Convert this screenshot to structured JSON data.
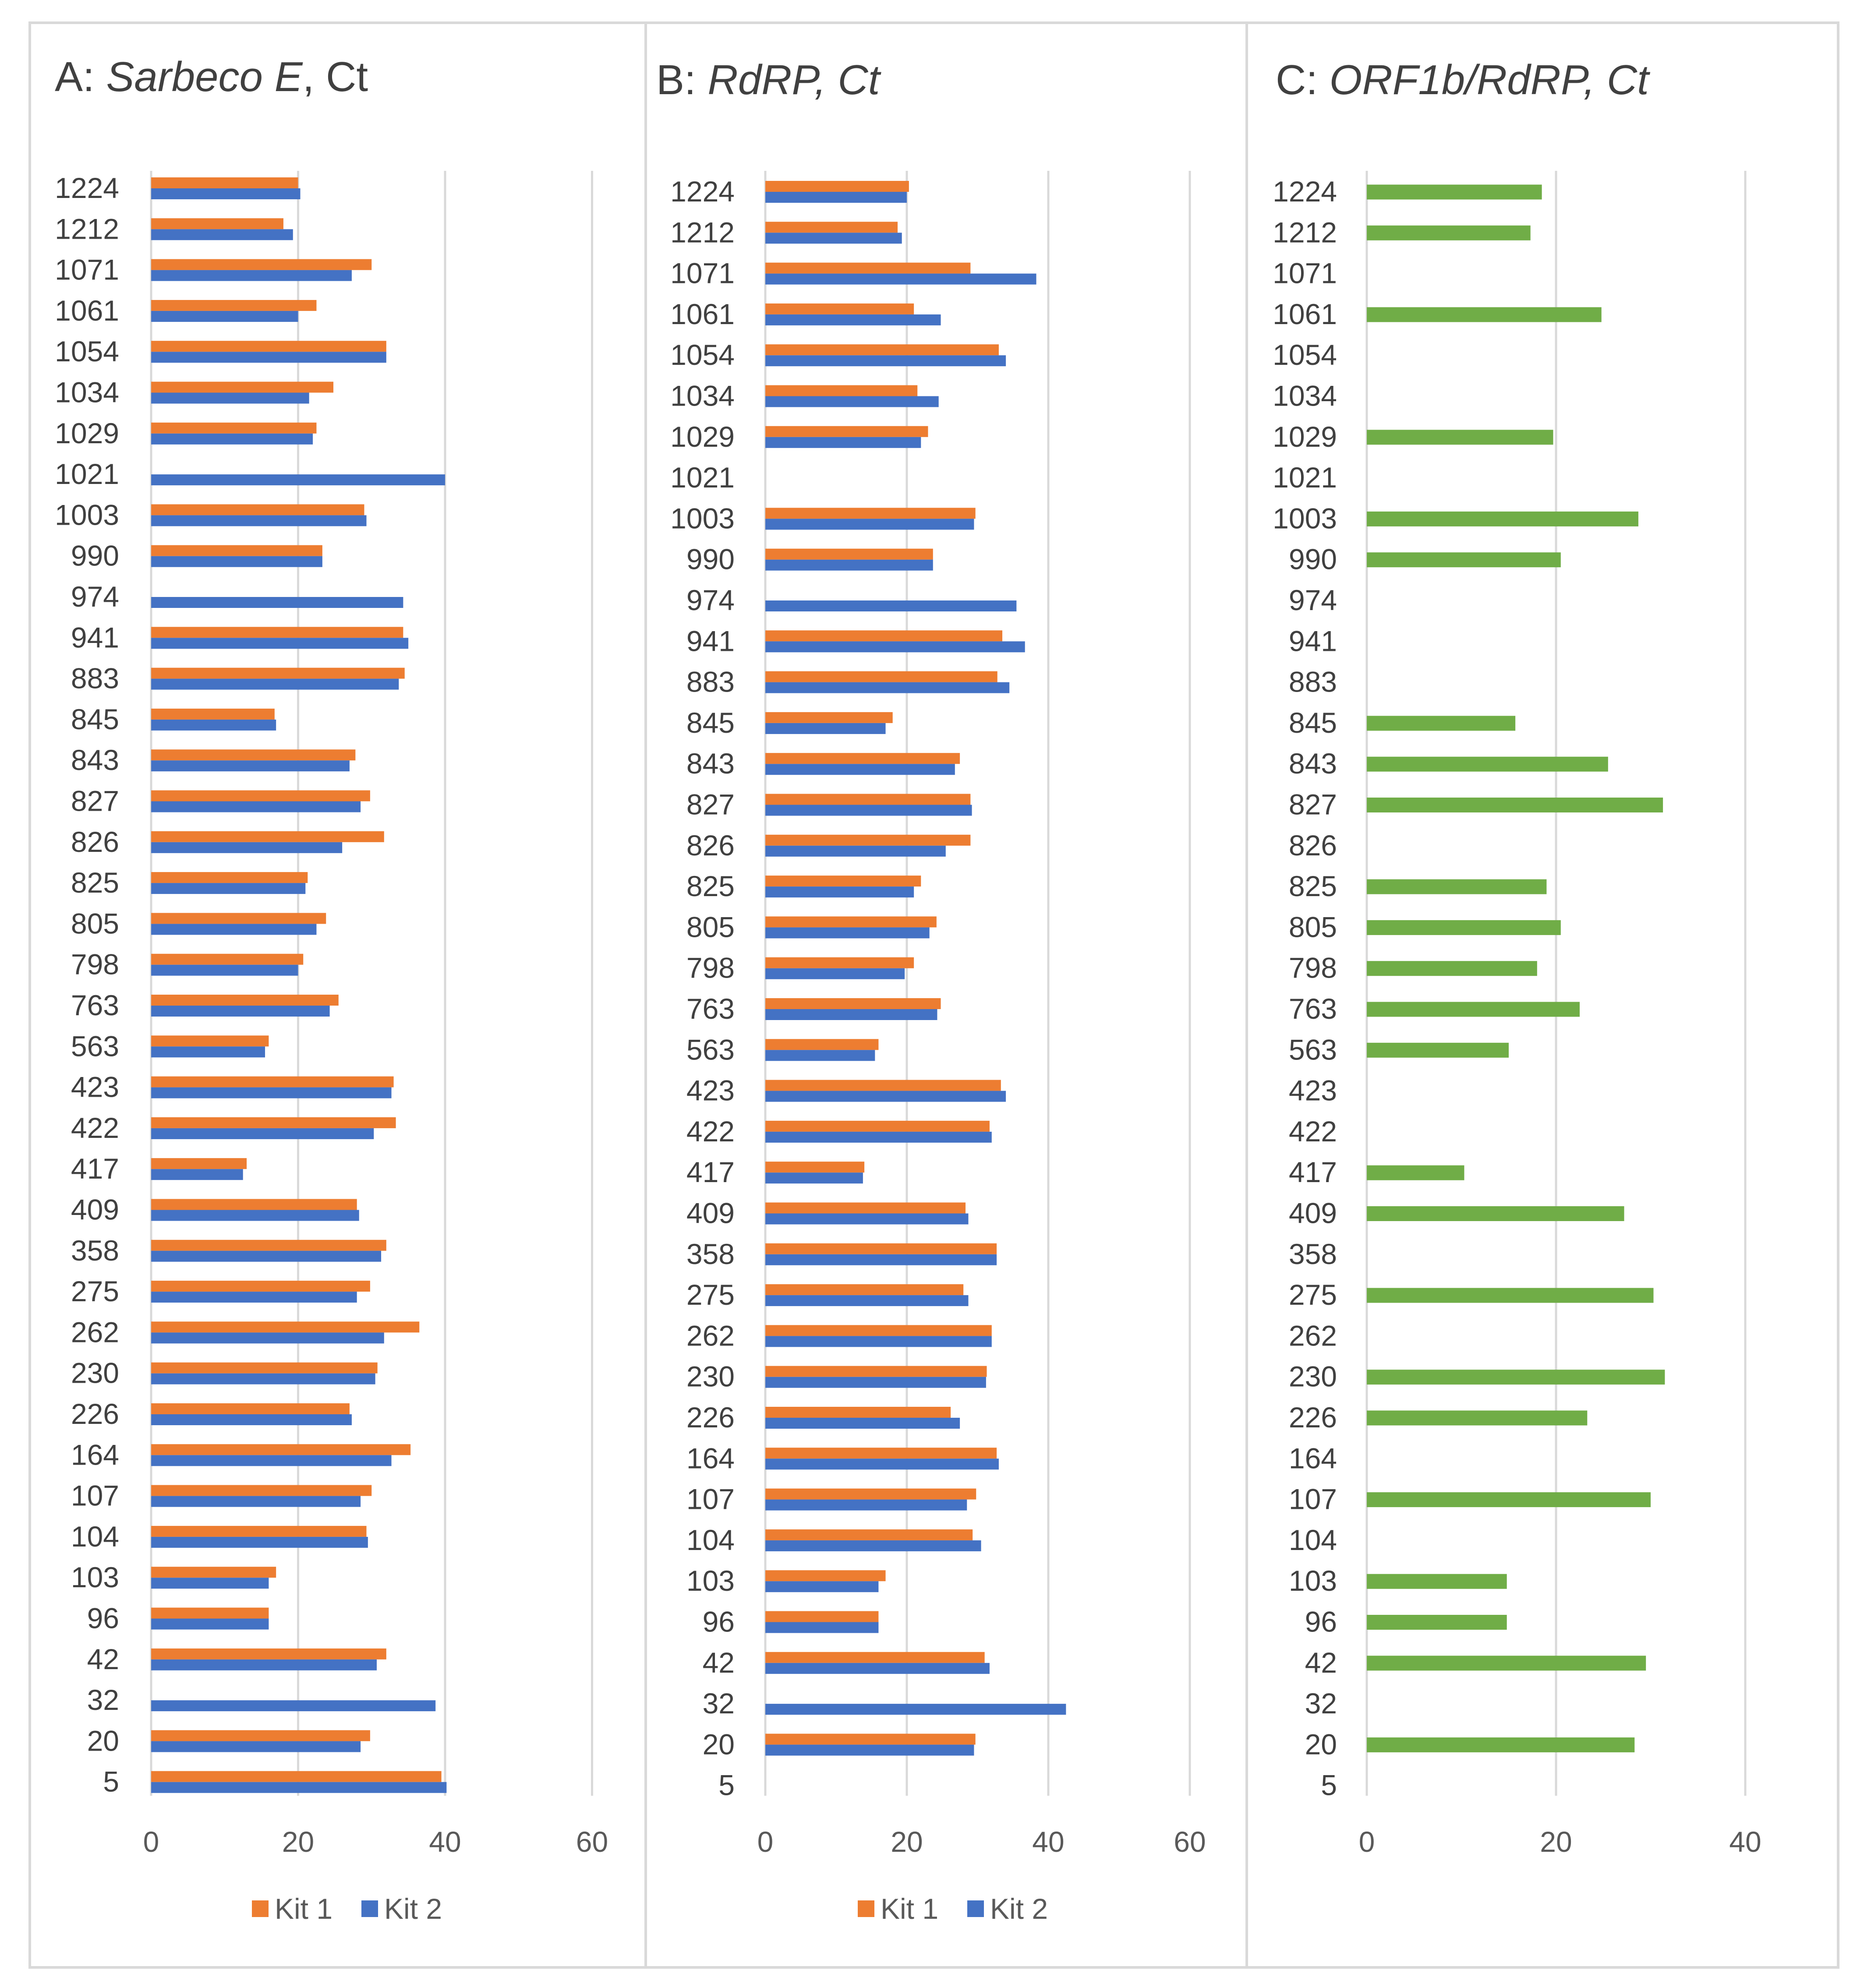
{
  "figure": {
    "background": "#ffffff",
    "frame_color": "#d9d9d9"
  },
  "colors": {
    "kit1": "#ED7D31",
    "kit2": "#4472C4",
    "single": "#70AD47"
  },
  "chart_data": [
    {
      "type": "bar",
      "orientation": "horizontal",
      "title_prefix": "A: ",
      "title_italic": "Sarbeco E",
      "title_suffix": ", Ct",
      "categories": [
        "1224",
        "1212",
        "1071",
        "1061",
        "1054",
        "1034",
        "1029",
        "1021",
        "1003",
        "990",
        "974",
        "941",
        "883",
        "845",
        "843",
        "827",
        "826",
        "825",
        "805",
        "798",
        "763",
        "563",
        "423",
        "422",
        "417",
        "409",
        "358",
        "275",
        "262",
        "230",
        "226",
        "164",
        "107",
        "104",
        "103",
        "96",
        "42",
        "32",
        "20",
        "5"
      ],
      "series": [
        {
          "name": "Kit 1",
          "color": "#ED7D31",
          "values": [
            20.0,
            18.0,
            30.0,
            22.5,
            32.0,
            24.8,
            22.5,
            null,
            29.0,
            23.3,
            null,
            34.3,
            34.5,
            16.8,
            27.8,
            29.8,
            31.7,
            21.3,
            23.8,
            20.7,
            25.5,
            16.0,
            33.0,
            33.3,
            13.0,
            28.0,
            32.0,
            29.8,
            36.5,
            30.8,
            27.0,
            35.3,
            30.0,
            29.3,
            17.0,
            16.0,
            32.0,
            null,
            29.8,
            39.5
          ]
        },
        {
          "name": "Kit 2",
          "color": "#4472C4",
          "values": [
            20.3,
            19.3,
            27.3,
            20.0,
            32.0,
            21.5,
            22.0,
            40.0,
            29.3,
            23.3,
            34.3,
            35.0,
            33.7,
            17.0,
            27.0,
            28.5,
            26.0,
            21.0,
            22.5,
            20.0,
            24.3,
            15.5,
            32.7,
            30.3,
            12.5,
            28.3,
            31.3,
            28.0,
            31.7,
            30.5,
            27.3,
            32.7,
            28.5,
            29.5,
            16.0,
            16.0,
            30.7,
            38.7,
            28.5,
            40.2
          ]
        }
      ],
      "x_ticks": [
        0,
        20,
        40,
        60
      ],
      "tick_labels": [
        "0",
        "20",
        "40",
        "60"
      ],
      "xlim": [
        0,
        60
      ],
      "grid": true,
      "legend": {
        "position": "bottom",
        "entries": [
          "Kit 1",
          "Kit 2"
        ]
      }
    },
    {
      "type": "bar",
      "orientation": "horizontal",
      "title_prefix": "B: ",
      "title_italic": "RdRP, Ct",
      "title_suffix": "",
      "categories": [
        "1224",
        "1212",
        "1071",
        "1061",
        "1054",
        "1034",
        "1029",
        "1021",
        "1003",
        "990",
        "974",
        "941",
        "883",
        "845",
        "843",
        "827",
        "826",
        "825",
        "805",
        "798",
        "763",
        "563",
        "423",
        "422",
        "417",
        "409",
        "358",
        "275",
        "262",
        "230",
        "226",
        "164",
        "107",
        "104",
        "103",
        "96",
        "42",
        "32",
        "20",
        "5"
      ],
      "series": [
        {
          "name": "Kit 1",
          "color": "#ED7D31",
          "values": [
            20.3,
            18.7,
            29.0,
            21.0,
            33.0,
            21.5,
            23.0,
            null,
            29.7,
            23.7,
            null,
            33.5,
            32.8,
            18.0,
            27.5,
            29.0,
            29.0,
            22.0,
            24.2,
            21.0,
            24.8,
            16.0,
            33.3,
            31.7,
            14.0,
            28.3,
            32.7,
            28.0,
            32.0,
            31.3,
            26.2,
            32.7,
            29.8,
            29.3,
            17.0,
            16.0,
            31.0,
            null,
            29.7,
            null
          ]
        },
        {
          "name": "Kit 2",
          "color": "#4472C4",
          "values": [
            20.0,
            19.3,
            38.3,
            24.8,
            34.0,
            24.5,
            22.0,
            null,
            29.5,
            23.7,
            35.5,
            36.7,
            34.5,
            17.0,
            26.8,
            29.2,
            25.5,
            21.0,
            23.2,
            19.7,
            24.3,
            15.5,
            34.0,
            32.0,
            13.8,
            28.7,
            32.7,
            28.7,
            32.0,
            31.2,
            27.5,
            33.0,
            28.5,
            30.5,
            16.0,
            16.0,
            31.7,
            42.5,
            29.5,
            null
          ]
        }
      ],
      "x_ticks": [
        0,
        20,
        40,
        60
      ],
      "tick_labels": [
        "0",
        "20",
        "40",
        "60"
      ],
      "xlim": [
        0,
        60
      ],
      "grid": true,
      "legend": {
        "position": "bottom",
        "entries": [
          "Kit 1",
          "Kit 2"
        ]
      }
    },
    {
      "type": "bar",
      "orientation": "horizontal",
      "title_prefix": "C: ",
      "title_italic": "ORF1b/RdRP, Ct",
      "title_suffix": "",
      "categories": [
        "1224",
        "1212",
        "1071",
        "1061",
        "1054",
        "1034",
        "1029",
        "1021",
        "1003",
        "990",
        "974",
        "941",
        "883",
        "845",
        "843",
        "827",
        "826",
        "825",
        "805",
        "798",
        "763",
        "563",
        "423",
        "422",
        "417",
        "409",
        "358",
        "275",
        "262",
        "230",
        "226",
        "164",
        "107",
        "104",
        "103",
        "96",
        "42",
        "32",
        "20",
        "5"
      ],
      "series": [
        {
          "name": "",
          "color": "#70AD47",
          "values": [
            18.5,
            17.3,
            null,
            24.8,
            null,
            null,
            19.7,
            null,
            28.7,
            20.5,
            null,
            null,
            null,
            15.7,
            25.5,
            31.3,
            null,
            19.0,
            20.5,
            18.0,
            22.5,
            15.0,
            null,
            null,
            10.3,
            27.2,
            null,
            30.3,
            null,
            31.5,
            23.3,
            null,
            30.0,
            null,
            14.8,
            14.8,
            29.5,
            null,
            28.3,
            null
          ]
        }
      ],
      "x_ticks": [
        0,
        20,
        40
      ],
      "tick_labels": [
        "0",
        "20",
        "40"
      ],
      "xlim": [
        0,
        47
      ],
      "grid": true,
      "legend": null
    }
  ]
}
